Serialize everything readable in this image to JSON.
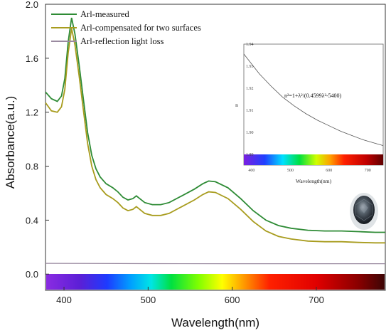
{
  "chart_data": {
    "type": "line",
    "xlabel": "Wavelength(nm)",
    "ylabel": "Absorbance(a.u.)",
    "xlim": [
      378,
      782
    ],
    "ylim": [
      -0.12,
      2.0
    ],
    "x_ticks": [
      "400",
      "500",
      "600",
      "700"
    ],
    "y_ticks": [
      "0.0",
      "0.4",
      "0.8",
      "1.2",
      "1.6",
      "2.0"
    ],
    "legend": {
      "placement": "top-left"
    },
    "series": [
      {
        "name": "Arl-measured",
        "color": "#2e8b35",
        "points": [
          [
            378,
            1.35
          ],
          [
            385,
            1.3
          ],
          [
            392,
            1.28
          ],
          [
            397,
            1.32
          ],
          [
            401,
            1.45
          ],
          [
            405,
            1.72
          ],
          [
            409,
            1.9
          ],
          [
            413,
            1.78
          ],
          [
            418,
            1.55
          ],
          [
            423,
            1.3
          ],
          [
            428,
            1.05
          ],
          [
            433,
            0.88
          ],
          [
            438,
            0.78
          ],
          [
            443,
            0.72
          ],
          [
            450,
            0.67
          ],
          [
            458,
            0.64
          ],
          [
            464,
            0.61
          ],
          [
            470,
            0.57
          ],
          [
            476,
            0.55
          ],
          [
            482,
            0.56
          ],
          [
            486,
            0.58
          ],
          [
            490,
            0.56
          ],
          [
            496,
            0.53
          ],
          [
            505,
            0.515
          ],
          [
            515,
            0.515
          ],
          [
            525,
            0.53
          ],
          [
            540,
            0.58
          ],
          [
            555,
            0.63
          ],
          [
            565,
            0.67
          ],
          [
            572,
            0.69
          ],
          [
            580,
            0.685
          ],
          [
            595,
            0.64
          ],
          [
            610,
            0.56
          ],
          [
            625,
            0.47
          ],
          [
            640,
            0.4
          ],
          [
            655,
            0.36
          ],
          [
            670,
            0.34
          ],
          [
            690,
            0.325
          ],
          [
            710,
            0.32
          ],
          [
            730,
            0.32
          ],
          [
            750,
            0.315
          ],
          [
            770,
            0.31
          ],
          [
            782,
            0.31
          ]
        ]
      },
      {
        "name": "Arl-compensated for two surfaces",
        "color": "#a89c1e",
        "points": [
          [
            378,
            1.27
          ],
          [
            385,
            1.21
          ],
          [
            392,
            1.2
          ],
          [
            397,
            1.24
          ],
          [
            401,
            1.37
          ],
          [
            405,
            1.64
          ],
          [
            409,
            1.82
          ],
          [
            413,
            1.7
          ],
          [
            418,
            1.47
          ],
          [
            423,
            1.22
          ],
          [
            428,
            0.97
          ],
          [
            433,
            0.8
          ],
          [
            438,
            0.7
          ],
          [
            443,
            0.64
          ],
          [
            450,
            0.59
          ],
          [
            458,
            0.56
          ],
          [
            464,
            0.53
          ],
          [
            470,
            0.49
          ],
          [
            476,
            0.47
          ],
          [
            482,
            0.48
          ],
          [
            486,
            0.5
          ],
          [
            490,
            0.48
          ],
          [
            496,
            0.45
          ],
          [
            505,
            0.435
          ],
          [
            515,
            0.435
          ],
          [
            525,
            0.45
          ],
          [
            540,
            0.5
          ],
          [
            555,
            0.55
          ],
          [
            565,
            0.59
          ],
          [
            572,
            0.61
          ],
          [
            580,
            0.605
          ],
          [
            595,
            0.56
          ],
          [
            610,
            0.48
          ],
          [
            625,
            0.39
          ],
          [
            640,
            0.32
          ],
          [
            655,
            0.28
          ],
          [
            670,
            0.26
          ],
          [
            690,
            0.245
          ],
          [
            710,
            0.24
          ],
          [
            730,
            0.24
          ],
          [
            750,
            0.235
          ],
          [
            770,
            0.232
          ],
          [
            782,
            0.232
          ]
        ]
      },
      {
        "name": "Arl-reflection light loss",
        "color": "#9a8aa0",
        "points": [
          [
            378,
            0.08
          ],
          [
            500,
            0.078
          ],
          [
            600,
            0.077
          ],
          [
            700,
            0.077
          ],
          [
            782,
            0.077
          ]
        ]
      }
    ],
    "inset": {
      "ylabel": "n",
      "xlabel": "Wavelength(nm)",
      "annotation": "n²=1+λ²/(0.4599λ²-5400)",
      "x_ticks": [
        "400",
        "500",
        "600",
        "700"
      ],
      "y_ticks": [
        "1.94",
        "1.93",
        "1.92",
        "1.91",
        "1.90",
        "1.89"
      ],
      "xlim": [
        380,
        740
      ],
      "ylim": [
        1.89,
        1.94
      ],
      "curve": [
        [
          380,
          1.9355
        ],
        [
          400,
          1.931
        ],
        [
          420,
          1.9265
        ],
        [
          450,
          1.921
        ],
        [
          480,
          1.916
        ],
        [
          510,
          1.912
        ],
        [
          540,
          1.9085
        ],
        [
          570,
          1.9055
        ],
        [
          600,
          1.903
        ],
        [
          630,
          1.9005
        ],
        [
          660,
          1.8985
        ],
        [
          690,
          1.8965
        ],
        [
          720,
          1.895
        ],
        [
          740,
          1.894
        ]
      ]
    }
  }
}
